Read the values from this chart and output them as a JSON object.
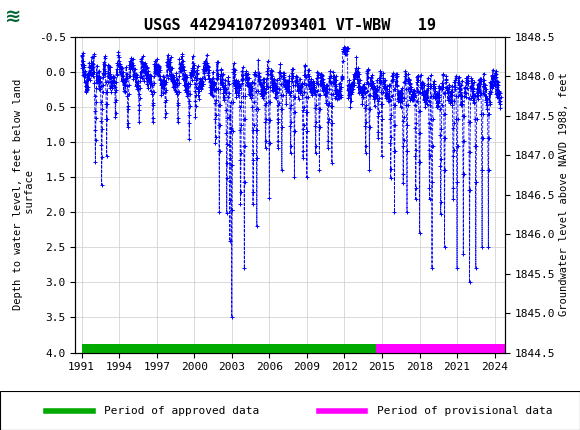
{
  "title": "USGS 442941072093401 VT-WBW   19",
  "ylabel_left": "Depth to water level, feet below land\n surface",
  "ylabel_right": "Groundwater level above NAVD 1988, feet",
  "ylim_left": [
    4.0,
    -0.5
  ],
  "ylim_right": [
    1844.5,
    1848.5
  ],
  "xlim_min": 1990.5,
  "xlim_max": 2024.8,
  "xticks": [
    1991,
    1994,
    1997,
    2000,
    2003,
    2006,
    2009,
    2012,
    2015,
    2018,
    2021,
    2024
  ],
  "yticks_left": [
    -0.5,
    0.0,
    0.5,
    1.0,
    1.5,
    2.0,
    2.5,
    3.0,
    3.5,
    4.0
  ],
  "yticks_right": [
    1844.5,
    1845.0,
    1845.5,
    1846.0,
    1846.5,
    1847.0,
    1847.5,
    1848.0,
    1848.5
  ],
  "line_color": "#0000FF",
  "header_color": "#006633",
  "approved_color": "#00AA00",
  "provisional_color": "#FF00FF",
  "approved_start": 1991.0,
  "approved_end": 2014.5,
  "provisional_start": 2014.5,
  "provisional_end": 2024.8,
  "fig_width": 5.8,
  "fig_height": 4.3,
  "dpi": 100
}
